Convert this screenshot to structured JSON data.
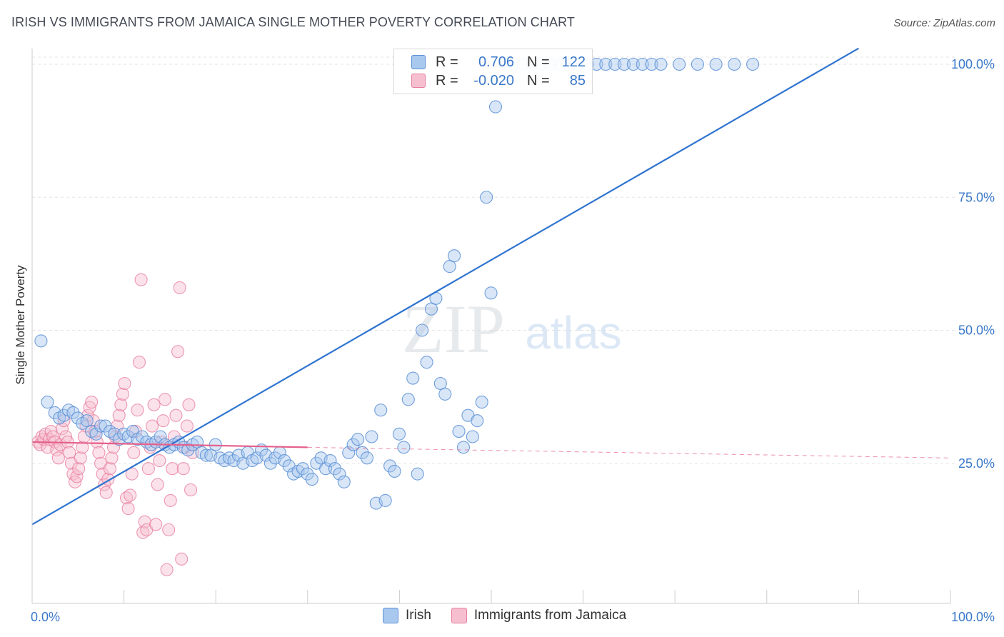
{
  "title": "IRISH VS IMMIGRANTS FROM JAMAICA SINGLE MOTHER POVERTY CORRELATION CHART",
  "source": "Source: ZipAtlas.com",
  "watermark": {
    "zip": "ZIP",
    "atlas": "atlas"
  },
  "legend": {
    "irish": {
      "r_label": "R =",
      "r_value": "0.706",
      "n_label": "N =",
      "n_value": "122"
    },
    "jamaica": {
      "r_label": "R =",
      "r_value": "-0.020",
      "n_label": "N =",
      "n_value": "85"
    }
  },
  "colors": {
    "irish_fill": "#a9c8ee",
    "irish_stroke": "#5b8fd6",
    "irish_line": "#2f74d0",
    "jamaica_fill": "#f6bfd0",
    "jamaica_stroke": "#e97fa0",
    "jamaica_line": "#e5608c",
    "axis_label": "#3a78c9",
    "grid": "#e3e3e3"
  },
  "chart_data": {
    "type": "scatter",
    "title": "IRISH VS IMMIGRANTS FROM JAMAICA SINGLE MOTHER POVERTY CORRELATION CHART",
    "xlabel": "",
    "ylabel": "Single Mother Poverty",
    "xlim": [
      0,
      100
    ],
    "ylim": [
      0,
      100
    ],
    "x_ticks": [
      "0.0%",
      "100.0%"
    ],
    "y_ticks": [
      {
        "value": 25,
        "label": "25.0%"
      },
      {
        "value": 50,
        "label": "50.0%"
      },
      {
        "value": 75,
        "label": "75.0%"
      },
      {
        "value": 100,
        "label": "100.0%"
      }
    ],
    "grid": true,
    "legend_position": "top-center",
    "series": [
      {
        "name": "Irish",
        "r": 0.706,
        "n": 122,
        "trend": {
          "x": [
            0,
            90
          ],
          "y": [
            13.5,
            103
          ]
        },
        "points": [
          [
            0.5,
            48
          ],
          [
            1.2,
            36.5
          ],
          [
            2,
            34.5
          ],
          [
            2.5,
            33.5
          ],
          [
            3,
            34
          ],
          [
            3.5,
            35
          ],
          [
            4,
            34.5
          ],
          [
            4.5,
            33.5
          ],
          [
            5,
            32.5
          ],
          [
            5.5,
            33
          ],
          [
            6,
            31
          ],
          [
            6.5,
            30.5
          ],
          [
            7,
            32
          ],
          [
            7.5,
            32
          ],
          [
            8,
            31
          ],
          [
            8.5,
            30.5
          ],
          [
            9,
            29.5
          ],
          [
            9.5,
            30.5
          ],
          [
            10,
            30
          ],
          [
            10.5,
            31
          ],
          [
            11,
            29.5
          ],
          [
            11.5,
            30
          ],
          [
            12,
            29
          ],
          [
            12.5,
            28.5
          ],
          [
            13,
            29
          ],
          [
            13.5,
            30
          ],
          [
            14,
            28.5
          ],
          [
            14.5,
            28
          ],
          [
            15,
            28.5
          ],
          [
            15.5,
            29
          ],
          [
            16,
            28
          ],
          [
            16.5,
            27.5
          ],
          [
            17,
            28.5
          ],
          [
            17.5,
            29
          ],
          [
            18,
            27
          ],
          [
            18.5,
            26.5
          ],
          [
            19,
            26.5
          ],
          [
            19.5,
            28.5
          ],
          [
            20,
            26
          ],
          [
            20.5,
            25.5
          ],
          [
            21,
            26
          ],
          [
            21.5,
            25.5
          ],
          [
            22,
            26.5
          ],
          [
            22.5,
            25
          ],
          [
            23,
            27
          ],
          [
            23.5,
            25.5
          ],
          [
            24,
            26
          ],
          [
            24.5,
            27.5
          ],
          [
            25,
            26.5
          ],
          [
            25.5,
            25
          ],
          [
            26,
            26
          ],
          [
            26.5,
            27
          ],
          [
            27,
            25.5
          ],
          [
            27.5,
            24.5
          ],
          [
            28,
            23
          ],
          [
            28.5,
            23.5
          ],
          [
            29,
            24
          ],
          [
            29.5,
            23
          ],
          [
            30,
            22
          ],
          [
            30.5,
            25
          ],
          [
            31,
            26
          ],
          [
            31.5,
            24
          ],
          [
            32,
            25.5
          ],
          [
            32.5,
            24
          ],
          [
            33,
            23
          ],
          [
            33.5,
            21.5
          ],
          [
            34,
            27
          ],
          [
            34.5,
            28.5
          ],
          [
            35,
            29.5
          ],
          [
            35.5,
            27
          ],
          [
            36,
            26
          ],
          [
            36.5,
            30
          ],
          [
            37,
            17.5
          ],
          [
            37.5,
            35
          ],
          [
            38,
            18
          ],
          [
            38.5,
            24.5
          ],
          [
            39,
            23.5
          ],
          [
            39.5,
            30.5
          ],
          [
            40,
            28
          ],
          [
            40.5,
            37
          ],
          [
            41,
            41
          ],
          [
            41.5,
            23
          ],
          [
            42,
            50
          ],
          [
            42.5,
            44
          ],
          [
            43,
            54
          ],
          [
            43.5,
            56
          ],
          [
            44,
            40
          ],
          [
            44.5,
            38
          ],
          [
            45,
            62
          ],
          [
            45.5,
            64
          ],
          [
            46,
            31
          ],
          [
            46.5,
            28
          ],
          [
            47,
            34
          ],
          [
            47.5,
            30
          ],
          [
            48,
            33
          ],
          [
            48.5,
            36.5
          ],
          [
            49,
            75
          ],
          [
            49.5,
            57
          ],
          [
            50,
            92
          ],
          [
            51,
            100
          ],
          [
            52,
            100
          ],
          [
            53,
            100
          ],
          [
            54,
            100
          ],
          [
            55,
            100
          ],
          [
            56,
            100
          ],
          [
            57,
            100
          ],
          [
            58,
            100
          ],
          [
            59,
            100
          ],
          [
            60,
            100
          ],
          [
            61,
            100
          ],
          [
            62,
            100
          ],
          [
            63,
            100
          ],
          [
            64,
            100
          ],
          [
            65,
            100
          ],
          [
            66,
            100
          ],
          [
            67,
            100
          ],
          [
            68,
            100
          ],
          [
            70,
            100
          ],
          [
            72,
            100
          ],
          [
            74,
            100
          ],
          [
            76,
            100
          ],
          [
            78,
            100
          ]
        ]
      },
      {
        "name": "Immigrants from Jamaica",
        "r": -0.02,
        "n": 85,
        "trend": {
          "x": [
            0,
            30
          ],
          "y": [
            29,
            28
          ]
        },
        "trend_extended": {
          "x": [
            30,
            100
          ],
          "y": [
            28,
            26
          ]
        },
        "points": [
          [
            0.2,
            29
          ],
          [
            0.4,
            28.5
          ],
          [
            0.6,
            30
          ],
          [
            0.8,
            29.5
          ],
          [
            1,
            30.5
          ],
          [
            1.2,
            28
          ],
          [
            1.4,
            29.5
          ],
          [
            1.6,
            31
          ],
          [
            1.8,
            30
          ],
          [
            2,
            29
          ],
          [
            2.2,
            27.5
          ],
          [
            2.4,
            26
          ],
          [
            2.6,
            28.5
          ],
          [
            2.8,
            31.5
          ],
          [
            3,
            33
          ],
          [
            3.2,
            30
          ],
          [
            3.4,
            29
          ],
          [
            3.6,
            27
          ],
          [
            3.8,
            25
          ],
          [
            4,
            23
          ],
          [
            4.2,
            21.5
          ],
          [
            4.4,
            22.5
          ],
          [
            4.6,
            24
          ],
          [
            4.8,
            26
          ],
          [
            5,
            28
          ],
          [
            5.2,
            30
          ],
          [
            5.4,
            32
          ],
          [
            5.6,
            34
          ],
          [
            5.8,
            35.5
          ],
          [
            6,
            36.5
          ],
          [
            6.2,
            33
          ],
          [
            6.4,
            31
          ],
          [
            6.6,
            29
          ],
          [
            6.8,
            27
          ],
          [
            7,
            25
          ],
          [
            7.2,
            23
          ],
          [
            7.4,
            21
          ],
          [
            7.6,
            19.5
          ],
          [
            7.8,
            22
          ],
          [
            8,
            24
          ],
          [
            8.2,
            26
          ],
          [
            8.4,
            28
          ],
          [
            8.6,
            30
          ],
          [
            8.8,
            32
          ],
          [
            9,
            34
          ],
          [
            9.2,
            36
          ],
          [
            9.4,
            38
          ],
          [
            9.6,
            40
          ],
          [
            9.8,
            18.5
          ],
          [
            10,
            16.5
          ],
          [
            10.2,
            19
          ],
          [
            10.4,
            23
          ],
          [
            10.6,
            27
          ],
          [
            10.8,
            31
          ],
          [
            11,
            35
          ],
          [
            11.2,
            44
          ],
          [
            11.4,
            59.5
          ],
          [
            11.6,
            12
          ],
          [
            11.8,
            14
          ],
          [
            12,
            12.5
          ],
          [
            12.2,
            24
          ],
          [
            12.4,
            28
          ],
          [
            12.6,
            32
          ],
          [
            12.8,
            36
          ],
          [
            13,
            13.5
          ],
          [
            13.2,
            21
          ],
          [
            13.4,
            25.5
          ],
          [
            13.6,
            29
          ],
          [
            13.8,
            33
          ],
          [
            14,
            37
          ],
          [
            14.2,
            5
          ],
          [
            14.4,
            12.5
          ],
          [
            14.6,
            18
          ],
          [
            14.8,
            24
          ],
          [
            15,
            30
          ],
          [
            15.2,
            34
          ],
          [
            15.4,
            46
          ],
          [
            15.6,
            58
          ],
          [
            15.8,
            7
          ],
          [
            16,
            24
          ],
          [
            16.2,
            28
          ],
          [
            16.4,
            32
          ],
          [
            16.6,
            36
          ],
          [
            16.8,
            20
          ],
          [
            17,
            27
          ]
        ]
      }
    ]
  }
}
